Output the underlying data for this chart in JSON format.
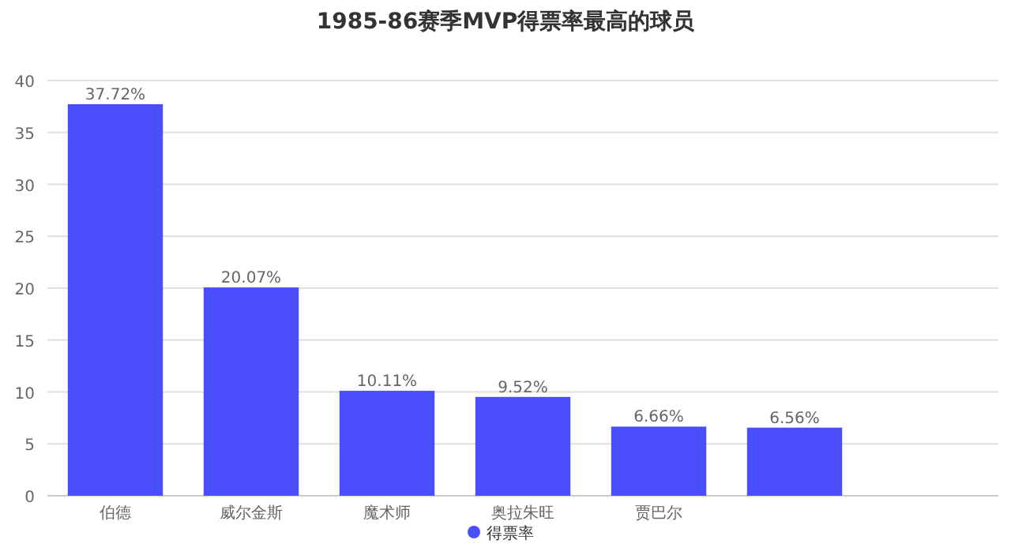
{
  "chart_data": {
    "type": "bar",
    "title": "1985-86赛季MVP得票率最高的球员",
    "categories": [
      "伯德",
      "威尔金斯",
      "魔术师",
      "奥拉朱旺",
      "贾巴尔",
      null,
      null
    ],
    "series": [
      {
        "name": "得票率",
        "color": "#4b4efc",
        "values": [
          37.72,
          20.07,
          10.11,
          9.52,
          6.66,
          6.56,
          null
        ],
        "value_labels": [
          "37.72%",
          "20.07%",
          "10.11%",
          "9.52%",
          "6.66%",
          "6.56%",
          null
        ]
      }
    ],
    "ylim": [
      0,
      40
    ],
    "yticks": [
      0,
      5,
      10,
      15,
      20,
      25,
      30,
      35,
      40
    ],
    "grid": "y",
    "legend": "bottom"
  }
}
